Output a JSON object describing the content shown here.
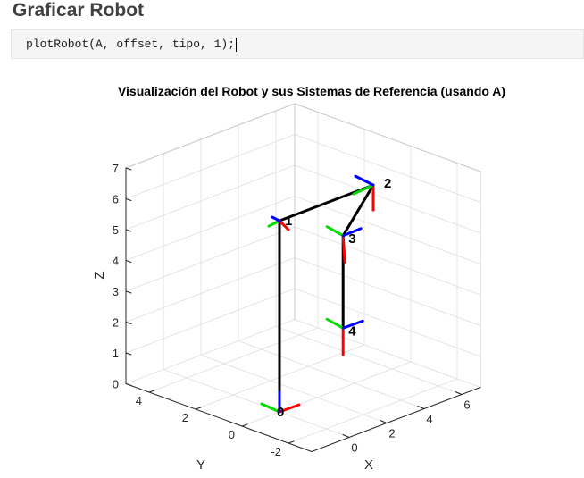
{
  "section": {
    "title": "Graficar Robot"
  },
  "code": {
    "line": "plotRobot(A, offset, tipo, 1);"
  },
  "chart_data": {
    "type": "line",
    "title": "Visualización del Robot y sus Sistemas de Referencia (usando A)",
    "xlabel": "X",
    "ylabel": "Y",
    "zlabel": "Z",
    "xlim": [
      -2,
      7
    ],
    "ylim": [
      -3,
      5
    ],
    "zlim": [
      0,
      7
    ],
    "xticks": [
      "0",
      "2",
      "4",
      "6"
    ],
    "yticks": [
      "-2",
      "0",
      "2",
      "4"
    ],
    "zticks": [
      "0",
      "1",
      "2",
      "3",
      "4",
      "5",
      "6",
      "7"
    ],
    "grid": true,
    "view": "3d",
    "link_color": "#000000",
    "axis_colors": {
      "x": "#ff0000",
      "y": "#00dd00",
      "z": "#0000ff"
    },
    "joints": [
      {
        "label": "0",
        "x": 0,
        "y": 0,
        "z": 0
      },
      {
        "label": "1",
        "x": 0,
        "y": 0,
        "z": 6.2
      },
      {
        "label": "2",
        "x": 5,
        "y": 0,
        "z": 6.2
      },
      {
        "label": "3",
        "x": 5,
        "y": 1.3,
        "z": 4.2
      },
      {
        "label": "4",
        "x": 5,
        "y": 1.3,
        "z": 1.2
      }
    ]
  }
}
